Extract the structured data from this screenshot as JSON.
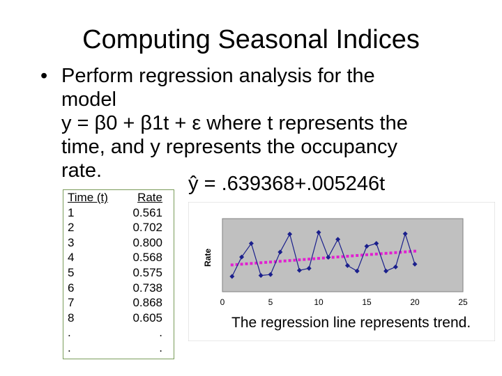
{
  "slide": {
    "title": "Computing Seasonal Indices",
    "bullet": "•",
    "bullet_lines": [
      "Perform regression analysis for the",
      "model",
      "y = β0 + β1t + ε where t represents the",
      "time, and y represents the occupancy",
      "rate."
    ],
    "equation": {
      "yhat": "ŷ",
      "equals": "=",
      "intercept": ".639368",
      "op": "+",
      "slope": ".005246",
      "var": "t"
    },
    "note": "The regression line represents trend."
  },
  "table": {
    "headers": [
      "Time (t)",
      "Rate"
    ],
    "rows": [
      [
        "1",
        "0.561"
      ],
      [
        "2",
        "0.702"
      ],
      [
        "3",
        "0.800"
      ],
      [
        "4",
        "0.568"
      ],
      [
        "5",
        "0.575"
      ],
      [
        "6",
        "0.738"
      ],
      [
        "7",
        "0.868"
      ],
      [
        "8",
        "0.605"
      ],
      [
        ".",
        "."
      ],
      [
        ".",
        "."
      ]
    ]
  },
  "chart_data": {
    "type": "scatter",
    "ylabel": "Rate",
    "xlabel": "",
    "xlim": [
      0,
      25
    ],
    "xticks": [
      0,
      5,
      10,
      15,
      20,
      25
    ],
    "grid": false,
    "legend": "none",
    "colors": {
      "series": "#1a1f8c",
      "trend": "#e020d0",
      "plot_bg": "#c0c0c0"
    },
    "series": [
      {
        "values_x": [
          1,
          2,
          3,
          4,
          5,
          6,
          7,
          8,
          9,
          10,
          11,
          12,
          13,
          14,
          15,
          16,
          17,
          18,
          19,
          20
        ],
        "values_y": [
          0.561,
          0.702,
          0.8,
          0.568,
          0.575,
          0.738,
          0.868,
          0.605,
          0.62,
          0.88,
          0.7,
          0.83,
          0.64,
          0.6,
          0.78,
          0.8,
          0.6,
          0.63,
          0.87,
          0.65
        ]
      }
    ],
    "trend": {
      "intercept": 0.639368,
      "slope": 0.005246,
      "x_from": 1,
      "x_to": 20
    }
  }
}
